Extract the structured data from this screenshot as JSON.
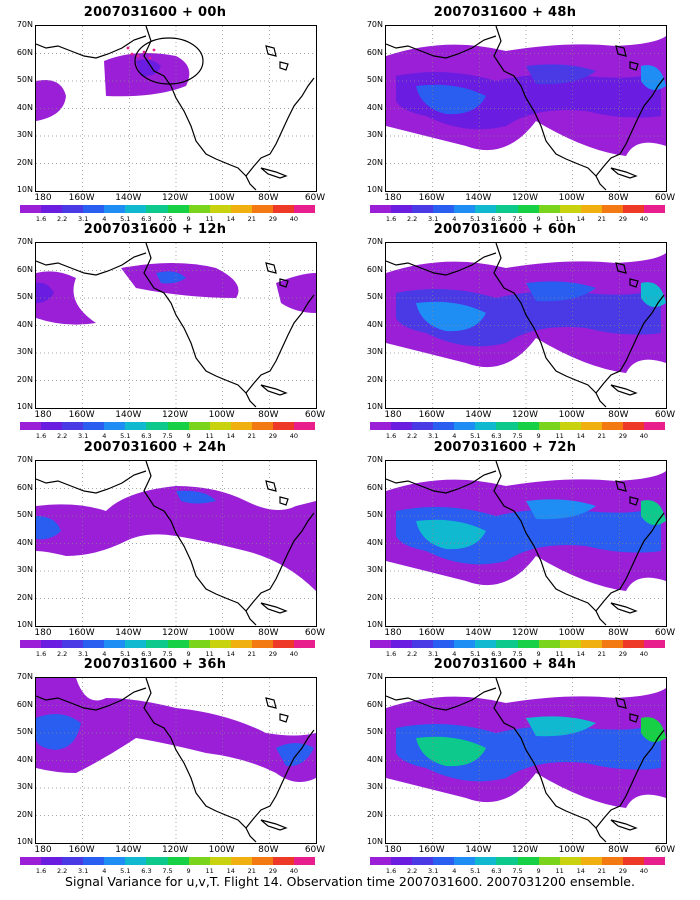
{
  "panels": [
    {
      "title": "2007031600 + 00h"
    },
    {
      "title": "2007031600 + 48h"
    },
    {
      "title": "2007031600 + 12h"
    },
    {
      "title": "2007031600 + 60h"
    },
    {
      "title": "2007031600 + 24h"
    },
    {
      "title": "2007031600 + 72h"
    },
    {
      "title": "2007031600 + 36h"
    },
    {
      "title": "2007031600 + 84h"
    }
  ],
  "axes": {
    "lat_labels": [
      "70N",
      "60N",
      "50N",
      "40N",
      "30N",
      "20N",
      "10N"
    ],
    "lon_labels": [
      "180",
      "160W",
      "140W",
      "120W",
      "100W",
      "80W",
      "60W"
    ]
  },
  "colorbar": {
    "labels": [
      "1.6",
      "2.2",
      "3.1",
      "4",
      "5.1",
      "6.3",
      "7.5",
      "9",
      "11",
      "14",
      "21",
      "29",
      "40"
    ],
    "colors": [
      "#9a1fd6",
      "#6a1de0",
      "#4a3ae6",
      "#2a5ef0",
      "#1e8ef5",
      "#10b8d0",
      "#0dc98c",
      "#17d046",
      "#7bd41c",
      "#c8d20e",
      "#f0b010",
      "#f37a12",
      "#ee3828",
      "#e81e8c"
    ]
  },
  "caption": "Signal Variance for u,v,T. Flight 14. Observation time 2007031600. 2007031200 ensemble."
}
